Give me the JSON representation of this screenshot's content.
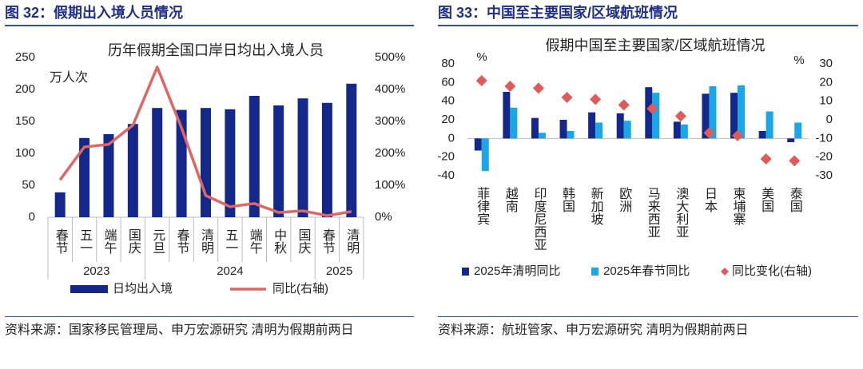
{
  "chart_data": [
    {
      "type": "combo",
      "figure_title": "图 32：假期出入境人员情况",
      "title": "历年假期全国口岸日均出入境人员",
      "ylabel": "万人次",
      "source": "资料来源：国家移民管理局、申万宏源研究 清明为假期前两日",
      "categories": [
        "春节",
        "五一",
        "端午",
        "国庆",
        "元旦",
        "春节",
        "清明",
        "五一",
        "端午",
        "中秋",
        "国庆",
        "春节",
        "清明"
      ],
      "category_groups": [
        "2023",
        "2023",
        "2023",
        "2023",
        "2024",
        "2024",
        "2024",
        "2024",
        "2024",
        "2024",
        "2024",
        "2025",
        "2025"
      ],
      "ylim": [
        0,
        250
      ],
      "yticks": [
        0,
        50,
        100,
        150,
        200,
        250
      ],
      "y2lim": [
        0,
        500
      ],
      "y2ticks": [
        {
          "value": 0,
          "label": "0%"
        },
        {
          "value": 100,
          "label": "100%"
        },
        {
          "value": 200,
          "label": "200%"
        },
        {
          "value": 300,
          "label": "300%"
        },
        {
          "value": 400,
          "label": "400%"
        },
        {
          "value": 500,
          "label": "500%"
        }
      ],
      "series": [
        {
          "name": "日均出入境",
          "type": "bar",
          "color": "#13288a",
          "values": [
            39,
            124,
            130,
            146,
            171,
            168,
            171,
            169,
            190,
            175,
            186,
            179,
            209
          ]
        },
        {
          "name": "同比(右轴)",
          "type": "line",
          "axis": "y2",
          "color": "#e06666",
          "values": [
            117,
            220,
            228,
            288,
            470,
            280,
            68,
            33,
            43,
            15,
            20,
            5,
            18
          ]
        }
      ]
    },
    {
      "type": "bar",
      "figure_title": "图 33：中国至主要国家/区域航班情况",
      "title": "假期中国至主要国家/区域航班情况",
      "ylabel": "%",
      "y2label": "%",
      "source": "资料来源：航班管家、申万宏源研究 清明为假期前两日",
      "categories": [
        "菲律宾",
        "越南",
        "印度尼西亚",
        "韩国",
        "新加坡",
        "欧洲",
        "马来西亚",
        "澳大利亚",
        "日本",
        "柬埔寨",
        "美国",
        "泰国"
      ],
      "ylim": [
        -40,
        80
      ],
      "yticks": [
        -40,
        -20,
        0,
        20,
        40,
        60,
        80
      ],
      "y2lim": [
        -30,
        30
      ],
      "y2ticks": [
        -30,
        -20,
        -10,
        0,
        10,
        20,
        30
      ],
      "series": [
        {
          "name": "2025年清明同比",
          "type": "bar",
          "color": "#13288a",
          "values": [
            -13,
            50,
            22,
            20,
            28,
            27,
            55,
            18,
            48,
            49,
            8,
            -4
          ]
        },
        {
          "name": "2025年春节同比",
          "type": "bar",
          "color": "#1aa7e6",
          "values": [
            -35,
            33,
            6,
            8,
            17,
            19,
            49,
            15,
            56,
            57,
            29,
            17
          ]
        },
        {
          "name": "同比变化(右轴)",
          "type": "scatter",
          "axis": "y2",
          "color": "#e05a5a",
          "values": [
            21,
            18,
            17,
            12,
            11,
            8,
            6,
            2,
            -7,
            -8.5,
            -21,
            -22
          ]
        }
      ]
    }
  ]
}
